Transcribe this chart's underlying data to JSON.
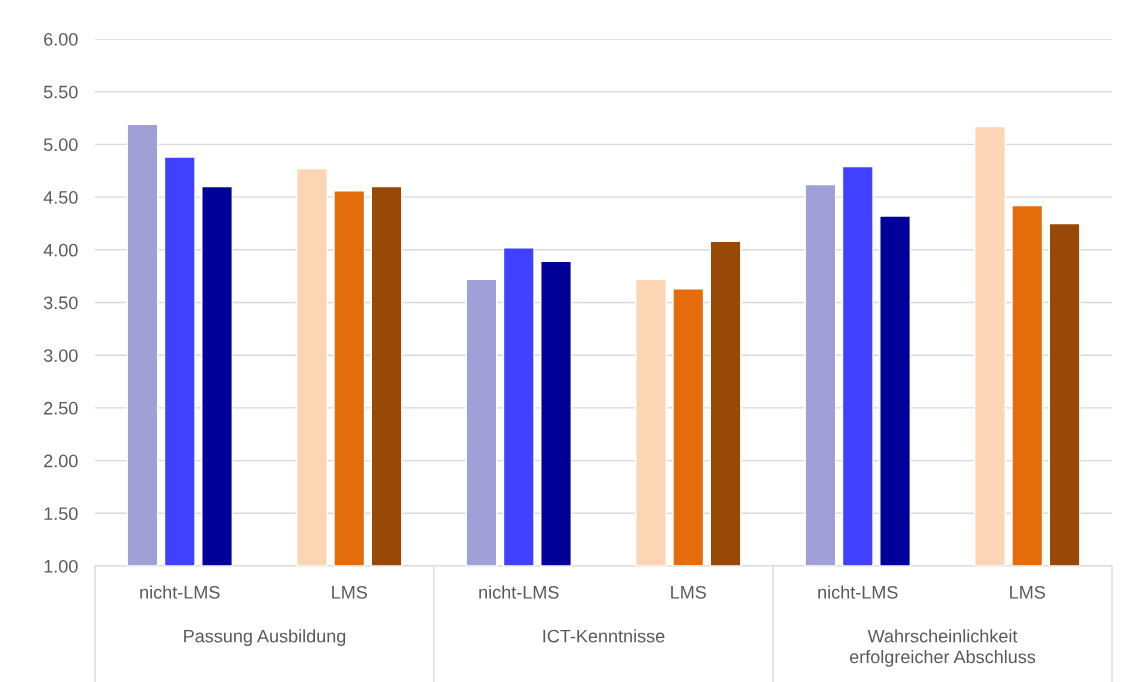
{
  "chart_data": {
    "type": "bar",
    "categories": [
      "nicht-LMS",
      "LMS",
      "nicht-LMS",
      "LMS",
      "nicht-LMS",
      "LMS"
    ],
    "series": [
      {
        "colors": [
          "#9fa0d8",
          "#fcd5b4",
          "#9fa0d8",
          "#fcd5b4",
          "#9fa0d8",
          "#fcd5b4"
        ],
        "values": [
          5.19,
          4.77,
          3.72,
          3.72,
          4.62,
          5.17
        ]
      },
      {
        "colors": [
          "#4040ff",
          "#e46c0a",
          "#4040ff",
          "#e46c0a",
          "#4040ff",
          "#e46c0a"
        ],
        "values": [
          4.88,
          4.56,
          4.02,
          3.63,
          4.79,
          4.42
        ]
      },
      {
        "colors": [
          "#000099",
          "#984807",
          "#000099",
          "#984807",
          "#000099",
          "#984807"
        ],
        "values": [
          4.6,
          4.6,
          3.89,
          4.08,
          4.32,
          4.25
        ]
      }
    ],
    "annotations": [
      "Passung Ausbildung",
      "ICT-Kenntnisse",
      "Wahrscheinlichkeit\nerfolgreicher Abschluss"
    ],
    "ylim": [
      1,
      6
    ],
    "yticks": [
      {
        "value": 1,
        "label": "1.00"
      },
      {
        "value": 1.5,
        "label": "1.50"
      },
      {
        "value": 2,
        "label": "2.00"
      },
      {
        "value": 2.5,
        "label": "2.50"
      },
      {
        "value": 3,
        "label": "3.00"
      },
      {
        "value": 3.5,
        "label": "3.50"
      },
      {
        "value": 4,
        "label": "4.00"
      },
      {
        "value": 4.5,
        "label": "4.50"
      },
      {
        "value": 5,
        "label": "5.00"
      },
      {
        "value": 5.5,
        "label": "5.50"
      },
      {
        "value": 6,
        "label": "6.00"
      }
    ],
    "grid": "y"
  }
}
